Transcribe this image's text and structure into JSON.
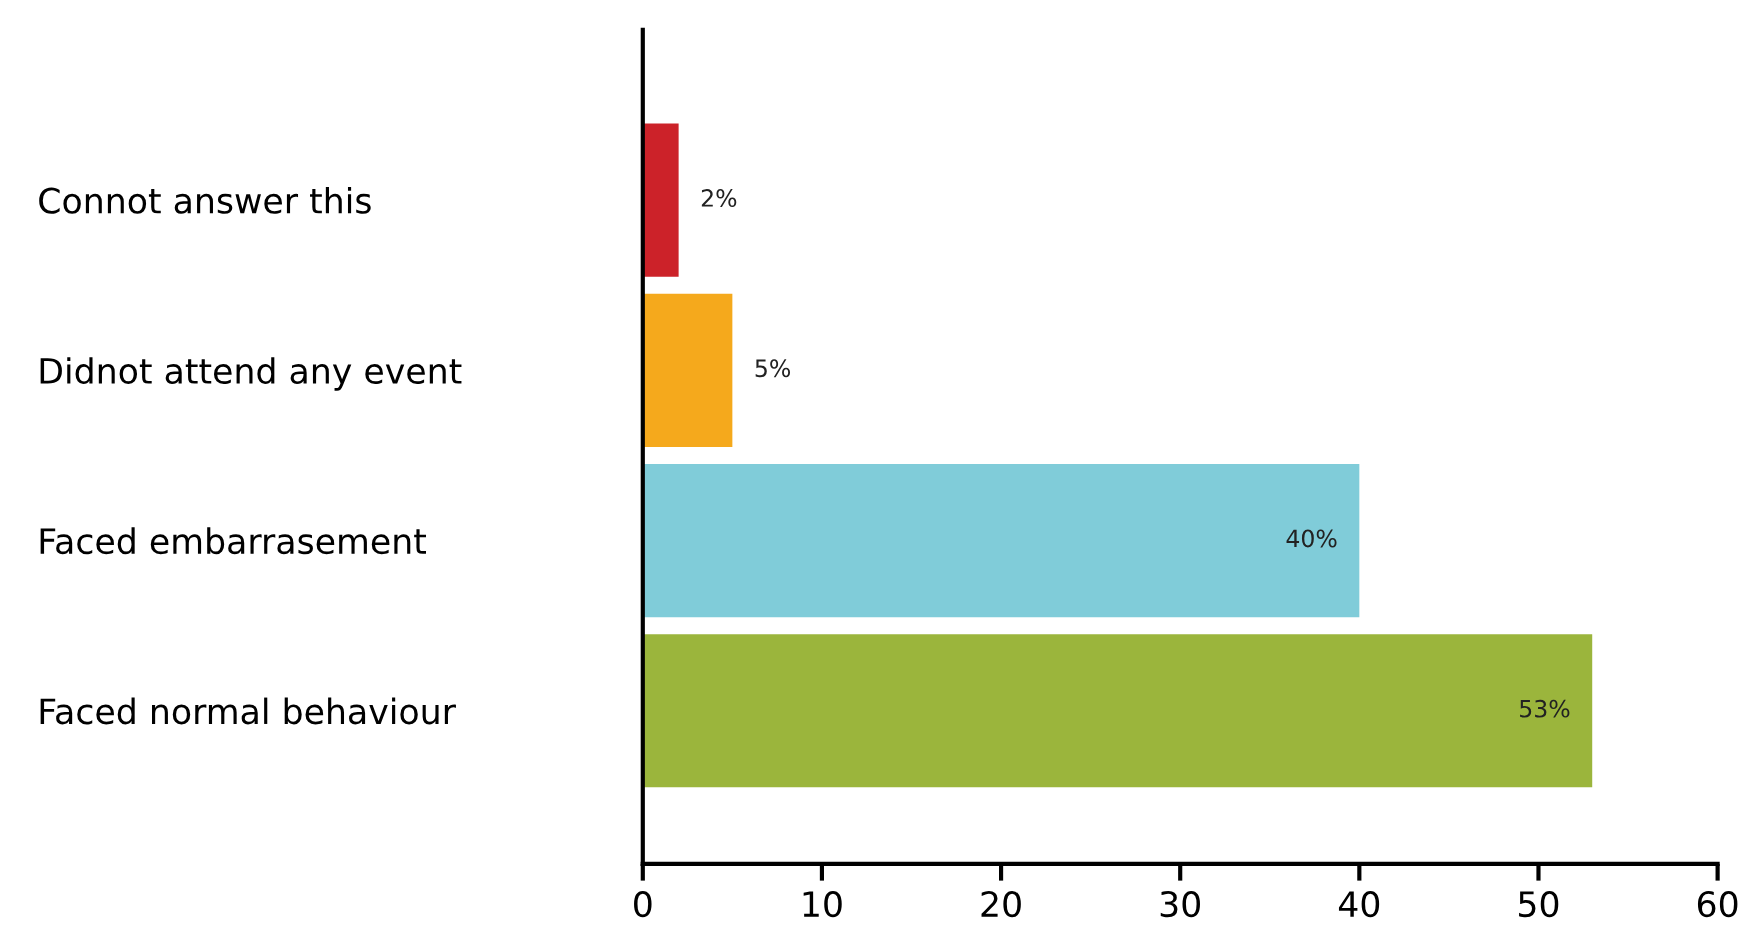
{
  "chart_data": {
    "type": "bar",
    "orientation": "horizontal",
    "categories": [
      "Connot answer this",
      "Didnot attend any event",
      "Faced embarrasement",
      "Faced normal behaviour"
    ],
    "values": [
      2,
      5,
      40,
      53
    ],
    "colors": [
      "#cc2229",
      "#f5a91c",
      "#80ccd9",
      "#9bb53c"
    ],
    "value_labels": [
      "2%",
      "5%",
      "40%",
      "53%"
    ],
    "xlim": [
      0,
      60
    ],
    "xticks": [
      0,
      10,
      20,
      30,
      40,
      50,
      60
    ],
    "grid": false,
    "legend": false
  }
}
